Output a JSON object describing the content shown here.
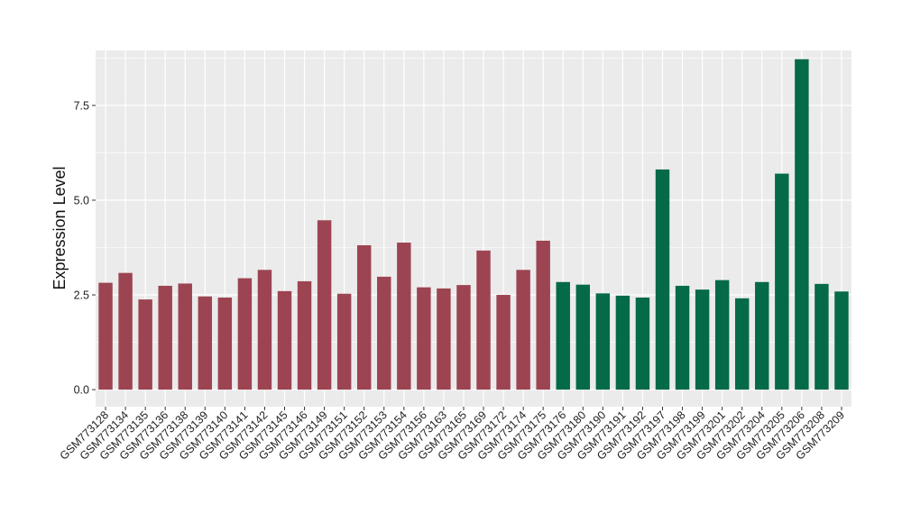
{
  "chart_data": {
    "type": "bar",
    "ylabel": "Expression Level",
    "xlabel": "",
    "ylim": [
      -0.45,
      8.95
    ],
    "yticks": [
      0.0,
      2.5,
      5.0,
      7.5
    ],
    "ytick_labels": [
      "0.0",
      "2.5",
      "5.0",
      "7.5"
    ],
    "grid": true,
    "panel_background": "#ebebeb",
    "grid_color": "#ffffff",
    "categories": [
      "GSM773128",
      "GSM773134",
      "GSM773135",
      "GSM773136",
      "GSM773138",
      "GSM773139",
      "GSM773140",
      "GSM773141",
      "GSM773142",
      "GSM773145",
      "GSM773146",
      "GSM773149",
      "GSM773151",
      "GSM773152",
      "GSM773153",
      "GSM773154",
      "GSM773156",
      "GSM773163",
      "GSM773165",
      "GSM773169",
      "GSM773172",
      "GSM773174",
      "GSM773175",
      "GSM773176",
      "GSM773180",
      "GSM773190",
      "GSM773191",
      "GSM773192",
      "GSM773197",
      "GSM773198",
      "GSM773199",
      "GSM773201",
      "GSM773202",
      "GSM773204",
      "GSM773205",
      "GSM773206",
      "GSM773208",
      "GSM773209"
    ],
    "values": [
      2.82,
      3.08,
      2.38,
      2.74,
      2.8,
      2.46,
      2.43,
      2.94,
      3.16,
      2.6,
      2.86,
      4.47,
      2.53,
      3.81,
      2.98,
      3.88,
      2.7,
      2.67,
      2.76,
      3.67,
      2.5,
      3.16,
      3.93,
      2.84,
      2.77,
      2.54,
      2.48,
      2.43,
      5.81,
      2.74,
      2.64,
      2.89,
      2.41,
      2.84,
      5.7,
      8.72,
      2.79,
      2.59
    ],
    "bar_colors": [
      "#9d4452",
      "#9d4452",
      "#9d4452",
      "#9d4452",
      "#9d4452",
      "#9d4452",
      "#9d4452",
      "#9d4452",
      "#9d4452",
      "#9d4452",
      "#9d4452",
      "#9d4452",
      "#9d4452",
      "#9d4452",
      "#9d4452",
      "#9d4452",
      "#9d4452",
      "#9d4452",
      "#9d4452",
      "#9d4452",
      "#9d4452",
      "#9d4452",
      "#9d4452",
      "#056a47",
      "#056a47",
      "#056a47",
      "#056a47",
      "#056a47",
      "#056a47",
      "#056a47",
      "#056a47",
      "#056a47",
      "#056a47",
      "#056a47",
      "#056a47",
      "#056a47",
      "#056a47",
      "#056a47"
    ]
  }
}
